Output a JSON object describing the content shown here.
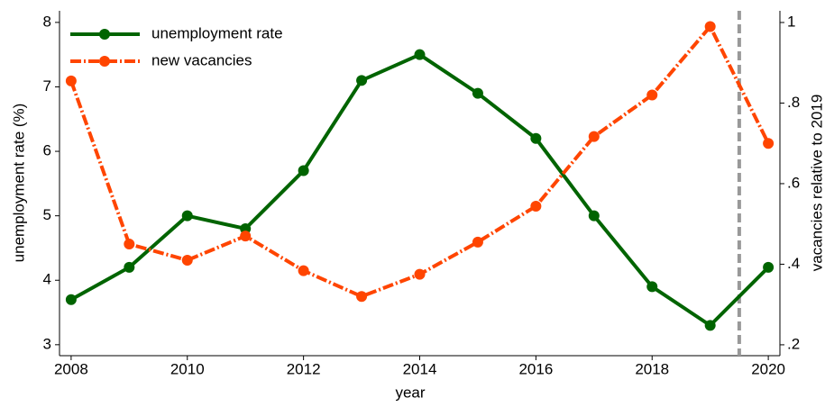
{
  "chart_data": {
    "type": "line",
    "x_label": "year",
    "y_label": "unemployment rate (%)",
    "y2_label": "vacancies relative to 2019",
    "x": [
      2008,
      2009,
      2010,
      2011,
      2012,
      2013,
      2014,
      2015,
      2016,
      2017,
      2018,
      2019,
      2020
    ],
    "series": [
      {
        "name": "unemployment rate",
        "color": "#006400",
        "axis": "y",
        "values": [
          3.7,
          4.2,
          5.0,
          4.8,
          5.7,
          7.1,
          7.5,
          6.9,
          6.2,
          5.0,
          3.9,
          3.3,
          4.2
        ]
      },
      {
        "name": "new vacancies",
        "color": "#ff4500",
        "axis": "y2",
        "values": [
          0.855,
          0.45,
          0.41,
          0.47,
          0.384,
          0.32,
          0.375,
          0.455,
          0.544,
          0.717,
          0.82,
          0.99,
          0.7
        ]
      }
    ],
    "xlim": [
      2007.8,
      2020.2
    ],
    "xticks": [
      2008,
      2010,
      2012,
      2014,
      2016,
      2018,
      2020
    ],
    "ylim": [
      2.83,
      8.18
    ],
    "yticks": [
      3,
      4,
      5,
      6,
      7,
      8
    ],
    "y2lim": [
      0.173,
      1.029
    ],
    "y2ticks": [
      {
        "value": 0.2,
        "label": ".2"
      },
      {
        "value": 0.4,
        "label": ".4"
      },
      {
        "value": 0.6,
        "label": ".6"
      },
      {
        "value": 0.8,
        "label": ".8"
      },
      1
    ],
    "reference_line": {
      "x": 2019.5,
      "color": "#999999"
    },
    "legend": "upper-left"
  }
}
